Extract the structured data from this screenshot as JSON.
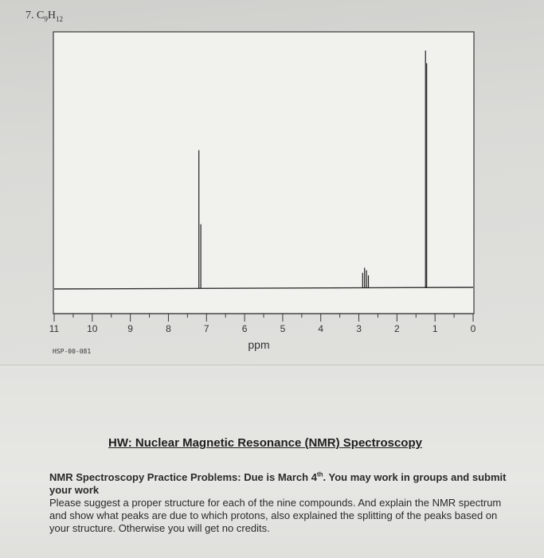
{
  "problem": {
    "number": "7.",
    "formula_c": "C",
    "formula_c_sub": "9",
    "formula_h": "H",
    "formula_h_sub": "12"
  },
  "chart_data": {
    "type": "line",
    "title": "",
    "xlabel": "ppm",
    "ylabel": "",
    "x_reversed": true,
    "xlim": [
      11,
      0
    ],
    "ticks": [
      "11",
      "10",
      "9",
      "8",
      "7",
      "6",
      "5",
      "4",
      "3",
      "2",
      "1",
      "0"
    ],
    "peaks": [
      {
        "ppm": 7.2,
        "relative_height": 0.54
      },
      {
        "ppm": 7.15,
        "relative_height": 0.25
      },
      {
        "ppm": 2.9,
        "relative_height": 0.06
      },
      {
        "ppm": 2.85,
        "relative_height": 0.08
      },
      {
        "ppm": 2.8,
        "relative_height": 0.07
      },
      {
        "ppm": 2.75,
        "relative_height": 0.05
      },
      {
        "ppm": 1.25,
        "relative_height": 0.93
      },
      {
        "ppm": 1.22,
        "relative_height": 0.88
      }
    ],
    "grid": false,
    "code": "HSP-00-081"
  },
  "homework": {
    "title": "HW: Nuclear Magnetic Resonance (NMR) Spectroscopy",
    "line1_bold": "NMR Spectroscopy Practice Problems: Due is March 4",
    "line1_sup": "th",
    "line1_rest": ". You may work in groups and submit your work",
    "line2": "Please suggest a proper structure for each of the nine compounds. And explain the NMR spectrum and show what peaks are due to which protons, also explained the splitting of the peaks based on your structure. Otherwise you will get no credits."
  }
}
